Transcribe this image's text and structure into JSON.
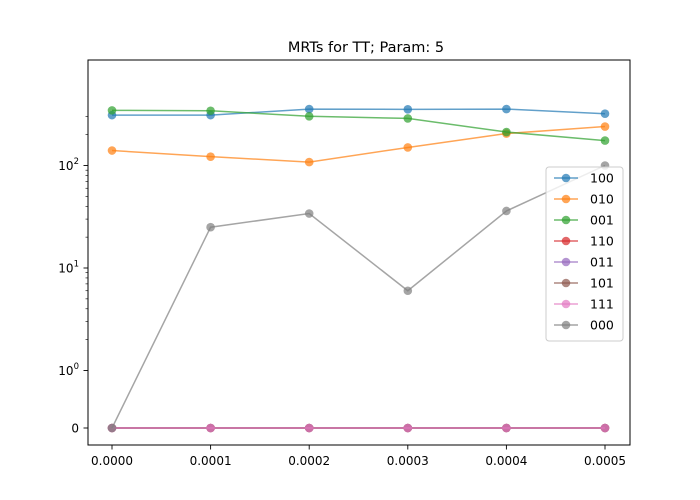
{
  "chart_data": {
    "type": "line",
    "title": "MRTs for TT; Param: 5",
    "xlabel": "",
    "ylabel": "",
    "y_scale": "symlog",
    "x": [
      0.0,
      0.0001,
      0.0002,
      0.0003,
      0.0004,
      0.0005
    ],
    "x_tick_labels": [
      "0.0000",
      "0.0001",
      "0.0002",
      "0.0003",
      "0.0004",
      "0.0005"
    ],
    "y_ticks": [
      {
        "value": 0,
        "base": "0",
        "exp": ""
      },
      {
        "value": 1,
        "base": "10",
        "exp": "0"
      },
      {
        "value": 10,
        "base": "10",
        "exp": "1"
      },
      {
        "value": 100,
        "base": "10",
        "exp": "2"
      }
    ],
    "legend_position": "center-right",
    "grid": false,
    "series": [
      {
        "name": "100",
        "color": "#1f77b4",
        "values": [
          310,
          310,
          355,
          353,
          355,
          320
        ]
      },
      {
        "name": "010",
        "color": "#ff7f0e",
        "values": [
          140,
          122,
          108,
          150,
          205,
          240
        ]
      },
      {
        "name": "001",
        "color": "#2ca02c",
        "values": [
          345,
          342,
          302,
          288,
          212,
          175
        ]
      },
      {
        "name": "110",
        "color": "#d62728",
        "values": [
          0,
          0,
          0,
          0,
          0,
          0
        ]
      },
      {
        "name": "011",
        "color": "#9467bd",
        "values": [
          0,
          0,
          0,
          0,
          0,
          0
        ]
      },
      {
        "name": "101",
        "color": "#8c564b",
        "values": [
          0,
          0,
          0,
          0,
          0,
          0
        ]
      },
      {
        "name": "111",
        "color": "#e377c2",
        "values": [
          0,
          0,
          0,
          0,
          0,
          0
        ]
      },
      {
        "name": "000",
        "color": "#7f7f7f",
        "values": [
          0,
          25,
          34,
          6,
          36,
          100
        ]
      }
    ]
  }
}
